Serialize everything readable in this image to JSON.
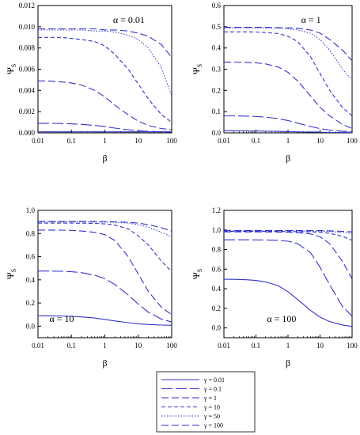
{
  "legend": {
    "placement": "bottom-center",
    "entries": [
      {
        "label": "γ = 0.01",
        "style": "solid"
      },
      {
        "label": "γ = 0.1",
        "style": "longdash"
      },
      {
        "label": "γ = 1",
        "style": "dash"
      },
      {
        "label": "γ = 10",
        "style": "shortdash"
      },
      {
        "label": "γ = 50",
        "style": "dot"
      },
      {
        "label": "γ = 100",
        "style": "dash"
      }
    ]
  },
  "colors": {
    "series": "#3333cc",
    "axis": "#000000"
  },
  "chart_data": [
    {
      "type": "line",
      "annotation": "α = 0.01",
      "annotation_position": "top-right",
      "xlabel": "β",
      "ylabel": "Ψ",
      "ylabel_sub": "S",
      "xscale": "log",
      "xlim": [
        0.01,
        100
      ],
      "xticks": [
        "0.01",
        "0.1",
        "1",
        "10",
        "100"
      ],
      "ylim": [
        0,
        0.012
      ],
      "yticks": [
        "0.000",
        "0.002",
        "0.004",
        "0.006",
        "0.008",
        "0.010",
        "0.012"
      ],
      "x": [
        0.01,
        0.02,
        0.05,
        0.1,
        0.2,
        0.5,
        1,
        2,
        5,
        10,
        20,
        50,
        100
      ],
      "series": [
        {
          "values": [
            0.0001,
            0.0001,
            0.0001,
            0.0001,
            0.0001,
            0.0001,
            0.0001,
            0.0001,
            0.0001,
            0.0001,
            0.0001,
            0.0001,
            0.0001
          ]
        },
        {
          "values": [
            0.0009,
            0.0009,
            0.00088,
            0.00085,
            0.0008,
            0.0007,
            0.0006,
            0.00045,
            0.0003,
            0.0002,
            0.00015,
            0.0001,
            0.0001
          ]
        },
        {
          "values": [
            0.0049,
            0.0049,
            0.0048,
            0.0047,
            0.0045,
            0.004,
            0.0034,
            0.0026,
            0.0017,
            0.0011,
            0.0007,
            0.0004,
            0.0003
          ]
        },
        {
          "values": [
            0.009,
            0.009,
            0.009,
            0.0089,
            0.0088,
            0.0086,
            0.0082,
            0.0074,
            0.006,
            0.0046,
            0.0032,
            0.0017,
            0.001
          ]
        },
        {
          "values": [
            0.0097,
            0.0097,
            0.0097,
            0.0097,
            0.0097,
            0.0096,
            0.0096,
            0.0095,
            0.0092,
            0.0088,
            0.008,
            0.0061,
            0.0035
          ]
        },
        {
          "values": [
            0.0098,
            0.0098,
            0.0098,
            0.0098,
            0.0098,
            0.0098,
            0.0097,
            0.0097,
            0.0096,
            0.0094,
            0.0091,
            0.0083,
            0.0071
          ]
        }
      ]
    },
    {
      "type": "line",
      "annotation": "α = 1",
      "annotation_position": "top-right",
      "xlabel": "β",
      "ylabel": "Ψ",
      "ylabel_sub": "S",
      "xscale": "log",
      "xlim": [
        0.01,
        100
      ],
      "xticks": [
        "0.01",
        "0.1",
        "1",
        "10",
        "100"
      ],
      "ylim": [
        0,
        0.6
      ],
      "yticks": [
        "0.0",
        "0.1",
        "0.2",
        "0.3",
        "0.4",
        "0.5",
        "0.6"
      ],
      "x": [
        0.01,
        0.02,
        0.05,
        0.1,
        0.2,
        0.5,
        1,
        2,
        5,
        10,
        20,
        50,
        100
      ],
      "series": [
        {
          "values": [
            0.01,
            0.01,
            0.0095,
            0.009,
            0.008,
            0.007,
            0.006,
            0.005,
            0.004,
            0.003,
            0.002,
            0.0015,
            0.001
          ]
        },
        {
          "values": [
            0.08,
            0.08,
            0.079,
            0.077,
            0.074,
            0.067,
            0.058,
            0.046,
            0.03,
            0.02,
            0.013,
            0.008,
            0.005
          ]
        },
        {
          "values": [
            0.333,
            0.333,
            0.332,
            0.33,
            0.325,
            0.31,
            0.285,
            0.245,
            0.175,
            0.12,
            0.08,
            0.04,
            0.02
          ]
        },
        {
          "values": [
            0.476,
            0.476,
            0.476,
            0.475,
            0.473,
            0.468,
            0.455,
            0.43,
            0.36,
            0.28,
            0.2,
            0.12,
            0.08
          ]
        },
        {
          "values": [
            0.495,
            0.495,
            0.495,
            0.495,
            0.494,
            0.493,
            0.49,
            0.485,
            0.47,
            0.44,
            0.39,
            0.3,
            0.25
          ]
        },
        {
          "values": [
            0.497,
            0.497,
            0.497,
            0.497,
            0.497,
            0.496,
            0.495,
            0.493,
            0.485,
            0.47,
            0.44,
            0.39,
            0.34
          ]
        }
      ]
    },
    {
      "type": "line",
      "annotation": "α = 10",
      "annotation_position": "bottom-left",
      "xlabel": "β",
      "ylabel": "Ψ",
      "ylabel_sub": "S",
      "xscale": "log",
      "xlim": [
        0.01,
        100
      ],
      "xticks": [
        "0.01",
        "0.1",
        "1",
        "10",
        "100"
      ],
      "ylim": [
        -0.1,
        1.0
      ],
      "yticks": [
        "0.0",
        "0.2",
        "0.4",
        "0.6",
        "0.8",
        "1.0"
      ],
      "ytick_values": [
        0,
        0.2,
        0.4,
        0.6,
        0.8,
        1.0
      ],
      "x": [
        0.01,
        0.02,
        0.05,
        0.1,
        0.2,
        0.5,
        1,
        2,
        5,
        10,
        20,
        50,
        100
      ],
      "series": [
        {
          "values": [
            0.09,
            0.089,
            0.088,
            0.085,
            0.08,
            0.07,
            0.058,
            0.045,
            0.03,
            0.02,
            0.014,
            0.009,
            0.007
          ]
        },
        {
          "values": [
            0.476,
            0.476,
            0.474,
            0.47,
            0.462,
            0.44,
            0.41,
            0.36,
            0.27,
            0.19,
            0.12,
            0.06,
            0.035
          ]
        },
        {
          "values": [
            0.83,
            0.83,
            0.829,
            0.827,
            0.822,
            0.81,
            0.79,
            0.74,
            0.6,
            0.45,
            0.3,
            0.16,
            0.1
          ]
        },
        {
          "values": [
            0.89,
            0.89,
            0.89,
            0.89,
            0.889,
            0.887,
            0.883,
            0.873,
            0.84,
            0.78,
            0.7,
            0.56,
            0.47
          ]
        },
        {
          "values": [
            0.9,
            0.9,
            0.9,
            0.9,
            0.9,
            0.899,
            0.898,
            0.896,
            0.89,
            0.876,
            0.855,
            0.81,
            0.77
          ]
        },
        {
          "values": [
            0.905,
            0.905,
            0.905,
            0.905,
            0.905,
            0.904,
            0.903,
            0.901,
            0.897,
            0.89,
            0.876,
            0.85,
            0.82
          ]
        }
      ]
    },
    {
      "type": "line",
      "annotation": "α = 100",
      "annotation_position": "bottom-right",
      "xlabel": "β",
      "ylabel": "Ψ",
      "ylabel_sub": "S",
      "xscale": "log",
      "xlim": [
        0.01,
        100
      ],
      "xticks": [
        "0.01",
        "0.1",
        "1",
        "10",
        "100"
      ],
      "ylim": [
        -0.1,
        1.2
      ],
      "yticks": [
        "0.0",
        "0.2",
        "0.4",
        "0.6",
        "0.8",
        "1.0",
        "1.2"
      ],
      "ytick_values": [
        0,
        0.2,
        0.4,
        0.6,
        0.8,
        1.0,
        1.2
      ],
      "x": [
        0.01,
        0.02,
        0.05,
        0.1,
        0.2,
        0.5,
        1,
        2,
        5,
        10,
        20,
        50,
        100
      ],
      "series": [
        {
          "values": [
            0.497,
            0.496,
            0.492,
            0.485,
            0.47,
            0.43,
            0.37,
            0.29,
            0.18,
            0.11,
            0.065,
            0.03,
            0.015
          ]
        },
        {
          "values": [
            0.9,
            0.9,
            0.9,
            0.899,
            0.898,
            0.893,
            0.885,
            0.86,
            0.77,
            0.62,
            0.44,
            0.22,
            0.12
          ]
        },
        {
          "values": [
            0.98,
            0.98,
            0.98,
            0.98,
            0.98,
            0.979,
            0.977,
            0.973,
            0.96,
            0.93,
            0.86,
            0.68,
            0.5
          ]
        },
        {
          "values": [
            0.985,
            0.985,
            0.985,
            0.985,
            0.985,
            0.985,
            0.984,
            0.983,
            0.981,
            0.976,
            0.966,
            0.935,
            0.895
          ]
        },
        {
          "values": [
            0.99,
            0.99,
            0.99,
            0.99,
            0.99,
            0.99,
            0.99,
            0.989,
            0.988,
            0.987,
            0.984,
            0.976,
            0.965
          ]
        },
        {
          "values": [
            0.995,
            0.995,
            0.995,
            0.995,
            0.995,
            0.995,
            0.995,
            0.994,
            0.994,
            0.993,
            0.991,
            0.986,
            0.98
          ]
        }
      ]
    }
  ]
}
